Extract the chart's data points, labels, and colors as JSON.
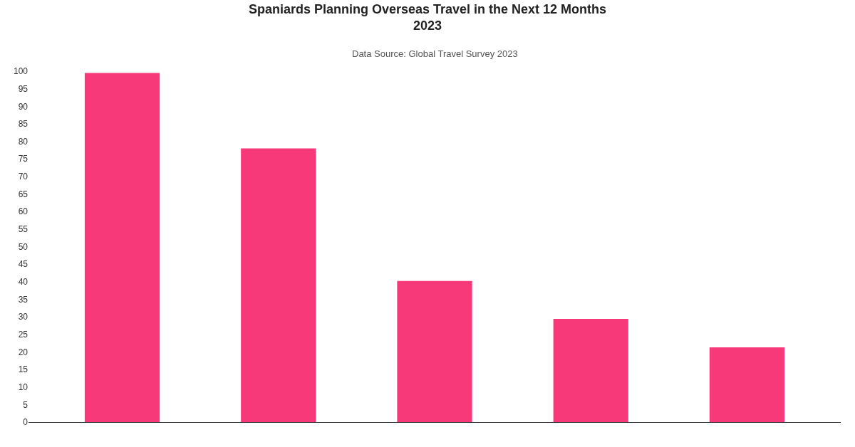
{
  "chart_data": {
    "type": "bar",
    "title": "Spaniards Planning Overseas Travel in the Next 12 Months\n2023",
    "subtitle": "Data Source: Global Travel Survey 2023",
    "categories": [
      null,
      null,
      null,
      null,
      null
    ],
    "values": [
      99.5,
      78,
      40.2,
      29.4,
      21.3
    ],
    "color": "#f7397a",
    "ylim": [
      0,
      100
    ],
    "yticks": [
      0,
      5,
      10,
      15,
      20,
      25,
      30,
      35,
      40,
      45,
      50,
      55,
      60,
      65,
      70,
      75,
      80,
      85,
      90,
      95,
      100
    ],
    "tick_labels": "y",
    "grid": false,
    "legend": false
  }
}
